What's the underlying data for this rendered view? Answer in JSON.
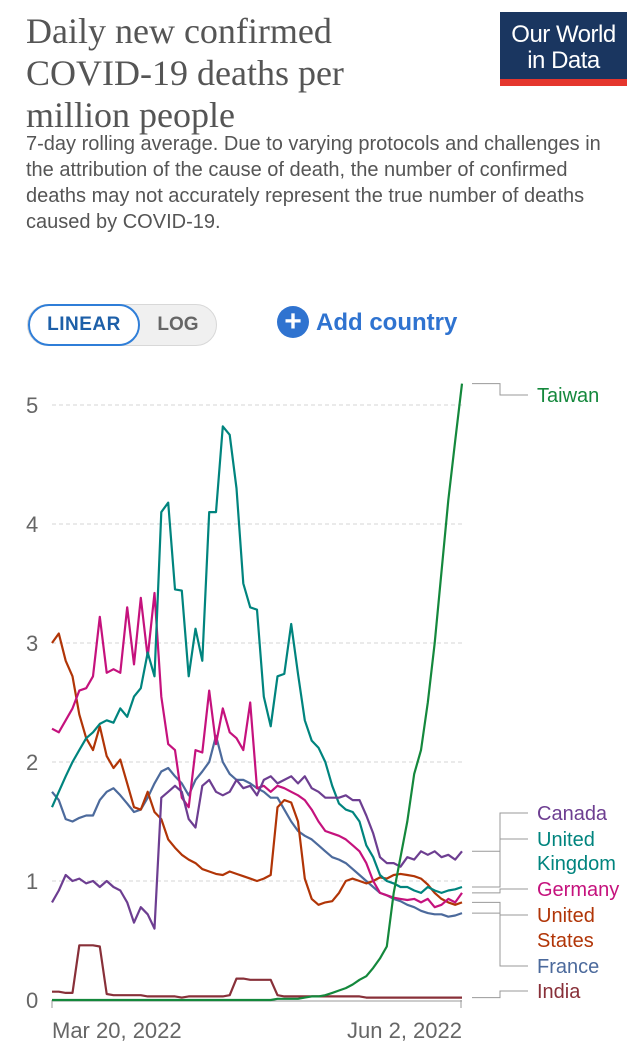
{
  "header": {
    "title_lines": [
      "Daily new confirmed",
      "COVID-19 deaths per",
      "million people"
    ],
    "subtitle": "7-day rolling average. Due to varying protocols and challenges in the attribution of the cause of death, the number of confirmed deaths may not accurately represent the true number of deaths caused by COVID-19.",
    "logo_line1": "Our World",
    "logo_line2": "in Data"
  },
  "controls": {
    "linear_label": "LINEAR",
    "log_label": "LOG",
    "add_country_label": "Add country",
    "add_icon": "plus-circle-icon"
  },
  "chart_data": {
    "type": "line",
    "ylim": [
      0,
      5.2
    ],
    "yticks": [
      "0",
      "1",
      "2",
      "3",
      "4",
      "5"
    ],
    "xticks": [
      "Mar 20, 2022",
      "Jun 2, 2022"
    ],
    "grid": "horizontal dashed",
    "legend": "right",
    "series": [
      {
        "name": "Taiwan",
        "color": "#14883c",
        "values": [
          0,
          0,
          0,
          0,
          0,
          0,
          0,
          0,
          0,
          0,
          0,
          0,
          0,
          0,
          0,
          0,
          0,
          0,
          0,
          0,
          0,
          0,
          0,
          0,
          0,
          0,
          0,
          0,
          0,
          0,
          0,
          0,
          0,
          0.01,
          0.01,
          0.01,
          0.01,
          0.02,
          0.03,
          0.03,
          0.04,
          0.06,
          0.08,
          0.1,
          0.13,
          0.17,
          0.2,
          0.27,
          0.35,
          0.45,
          0.9,
          1.2,
          1.5,
          1.9,
          2.1,
          2.5,
          3.0,
          3.6,
          4.2,
          4.7,
          5.18
        ]
      },
      {
        "name": "Canada",
        "color": "#6d3e91",
        "values": [
          0.82,
          0.92,
          1.05,
          1.0,
          1.02,
          0.98,
          1.0,
          0.95,
          1.0,
          0.95,
          0.92,
          0.82,
          0.65,
          0.78,
          0.72,
          0.6,
          1.7,
          1.75,
          1.8,
          1.75,
          1.52,
          1.45,
          1.8,
          1.85,
          1.75,
          1.72,
          1.75,
          1.85,
          1.78,
          1.8,
          1.72,
          1.85,
          1.88,
          1.82,
          1.85,
          1.88,
          1.82,
          1.88,
          1.78,
          1.75,
          1.7,
          1.7,
          1.7,
          1.72,
          1.68,
          1.68,
          1.55,
          1.4,
          1.2,
          1.15,
          1.15,
          1.12,
          1.2,
          1.18,
          1.25,
          1.22,
          1.25,
          1.2,
          1.22,
          1.18,
          1.25
        ]
      },
      {
        "name": "United Kingdom",
        "color": "#00847e",
        "values": [
          1.62,
          1.75,
          1.88,
          2.0,
          2.1,
          2.2,
          2.25,
          2.32,
          2.35,
          2.33,
          2.45,
          2.38,
          2.55,
          2.62,
          2.92,
          2.72,
          4.1,
          4.18,
          3.45,
          3.44,
          2.72,
          3.12,
          2.85,
          4.1,
          4.1,
          4.82,
          4.75,
          4.3,
          3.5,
          3.3,
          3.28,
          2.55,
          2.3,
          2.72,
          2.74,
          3.16,
          2.74,
          2.35,
          2.18,
          2.12,
          2.0,
          1.8,
          1.65,
          1.6,
          1.58,
          1.5,
          1.3,
          1.2,
          1.05,
          1.0,
          0.98,
          0.95,
          0.95,
          0.92,
          0.9,
          0.95,
          0.92,
          0.9,
          0.92,
          0.93,
          0.95
        ]
      },
      {
        "name": "Germany",
        "color": "#c5127d",
        "values": [
          2.28,
          2.25,
          2.35,
          2.45,
          2.6,
          2.62,
          2.72,
          3.22,
          2.75,
          2.78,
          2.75,
          3.3,
          2.82,
          3.38,
          2.88,
          3.42,
          2.55,
          2.15,
          2.1,
          1.7,
          1.62,
          2.1,
          2.08,
          2.6,
          2.15,
          2.45,
          2.25,
          2.2,
          2.1,
          2.5,
          1.78,
          1.8,
          1.75,
          1.8,
          1.78,
          1.75,
          1.72,
          1.68,
          1.6,
          1.5,
          1.42,
          1.4,
          1.38,
          1.35,
          1.3,
          1.25,
          1.15,
          1.0,
          0.9,
          0.88,
          0.86,
          0.85,
          0.84,
          0.85,
          0.82,
          0.85,
          0.78,
          0.8,
          0.85,
          0.82,
          0.9
        ]
      },
      {
        "name": "United States",
        "color": "#b13507",
        "values": [
          3.0,
          3.08,
          2.85,
          2.72,
          2.4,
          2.2,
          2.1,
          2.3,
          2.05,
          1.95,
          2.02,
          1.82,
          1.62,
          1.6,
          1.75,
          1.58,
          1.52,
          1.35,
          1.28,
          1.22,
          1.18,
          1.15,
          1.1,
          1.08,
          1.06,
          1.05,
          1.08,
          1.06,
          1.04,
          1.02,
          1.0,
          1.02,
          1.05,
          1.62,
          1.68,
          1.66,
          1.5,
          1.02,
          0.85,
          0.8,
          0.82,
          0.83,
          0.9,
          1.0,
          1.02,
          1.0,
          0.98,
          1.0,
          1.03,
          1.02,
          1.05,
          1.06,
          1.05,
          1.04,
          1.02,
          0.97,
          0.9,
          0.85,
          0.82,
          0.8,
          0.82
        ]
      },
      {
        "name": "France",
        "color": "#4c6a9c",
        "values": [
          1.75,
          1.68,
          1.52,
          1.5,
          1.53,
          1.55,
          1.55,
          1.68,
          1.75,
          1.78,
          1.72,
          1.65,
          1.58,
          1.6,
          1.7,
          1.82,
          1.92,
          1.95,
          1.88,
          1.82,
          1.72,
          1.85,
          1.92,
          2.0,
          2.22,
          2.0,
          1.9,
          1.85,
          1.85,
          1.82,
          1.78,
          1.75,
          1.7,
          1.7,
          1.6,
          1.5,
          1.42,
          1.38,
          1.35,
          1.3,
          1.25,
          1.2,
          1.18,
          1.15,
          1.1,
          1.05,
          1.0,
          0.95,
          0.9,
          0.88,
          0.85,
          0.83,
          0.8,
          0.78,
          0.75,
          0.73,
          0.72,
          0.72,
          0.7,
          0.71,
          0.73
        ]
      },
      {
        "name": "India",
        "color": "#883039",
        "values": [
          0.07,
          0.07,
          0.06,
          0.06,
          0.46,
          0.46,
          0.46,
          0.45,
          0.05,
          0.04,
          0.04,
          0.04,
          0.04,
          0.04,
          0.03,
          0.03,
          0.03,
          0.03,
          0.03,
          0.02,
          0.03,
          0.03,
          0.03,
          0.03,
          0.03,
          0.03,
          0.04,
          0.18,
          0.18,
          0.17,
          0.17,
          0.17,
          0.17,
          0.04,
          0.03,
          0.03,
          0.03,
          0.03,
          0.03,
          0.03,
          0.03,
          0.03,
          0.03,
          0.03,
          0.03,
          0.03,
          0.02,
          0.02,
          0.02,
          0.02,
          0.02,
          0.02,
          0.02,
          0.02,
          0.02,
          0.02,
          0.02,
          0.02,
          0.02,
          0.02,
          0.02
        ]
      }
    ]
  }
}
